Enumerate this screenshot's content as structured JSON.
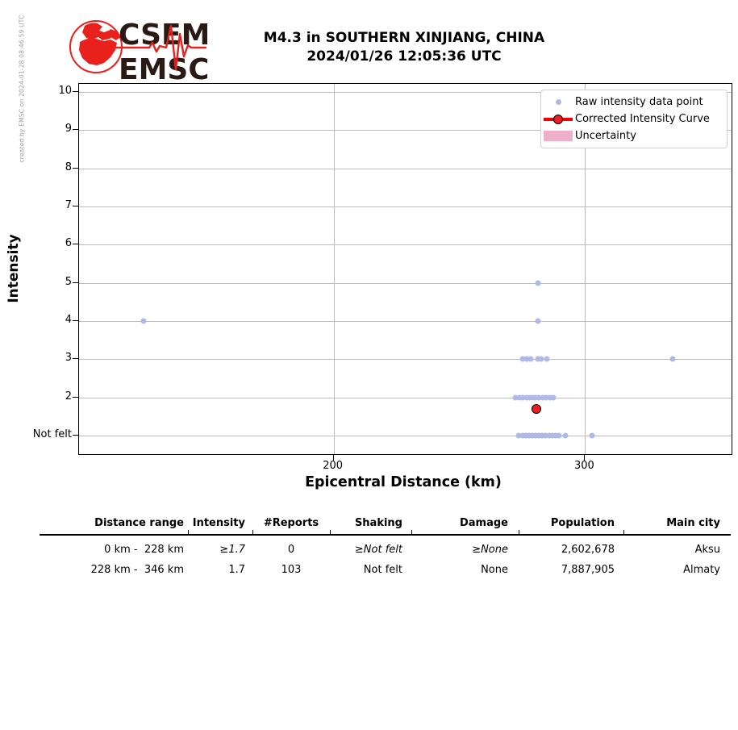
{
  "header": {
    "credit": "created by EMSC on 2024-01-28 08:46:59 UTC",
    "title_line1": "M4.3 in SOUTHERN XINJIANG, CHINA",
    "title_line2": "2024/01/26 12:05:36 UTC",
    "logo_line1": "CSEM",
    "logo_line2": "EMSC"
  },
  "colors": {
    "raw_point_blue": "#aeb9e7",
    "curve_red": "#f40000",
    "marker_red_fill": "#ee1c23",
    "uncertainty_pink": "#efafc8",
    "grid_gray": "#bcbcbc",
    "logo_red": "#e8211c",
    "logo_text_dark": "#2a1a14"
  },
  "chart_data": {
    "type": "scatter",
    "title": "M4.3 in SOUTHERN XINJIANG, CHINA 2024/01/26 12:05:36 UTC",
    "xlabel": "Epicentral Distance (km)",
    "ylabel": "Intensity",
    "xlim": [
      98.7,
      358.9
    ],
    "ylim": [
      0.47,
      10.21
    ],
    "grid": true,
    "legend_position": "upper right",
    "x_ticks": [
      {
        "value": 200,
        "label": "200"
      },
      {
        "value": 300,
        "label": "300"
      }
    ],
    "y_ticks": [
      {
        "value": 1,
        "label": "Not felt"
      },
      {
        "value": 2,
        "label": "2"
      },
      {
        "value": 3,
        "label": "3"
      },
      {
        "value": 4,
        "label": "4"
      },
      {
        "value": 5,
        "label": "5"
      },
      {
        "value": 6,
        "label": "6"
      },
      {
        "value": 7,
        "label": "7"
      },
      {
        "value": 8,
        "label": "8"
      },
      {
        "value": 9,
        "label": "9"
      },
      {
        "value": 10,
        "label": "10"
      }
    ],
    "series": [
      {
        "name": "Raw intensity data point",
        "type": "scatter",
        "points": [
          [
            124.4,
            4
          ],
          [
            281.3,
            5
          ],
          [
            281.3,
            4
          ],
          [
            275.3,
            3
          ],
          [
            276.9,
            3
          ],
          [
            278.5,
            3
          ],
          [
            281.1,
            3
          ],
          [
            282.4,
            3
          ],
          [
            284.9,
            3
          ],
          [
            334.7,
            3
          ],
          [
            272.4,
            2
          ],
          [
            274.0,
            2
          ],
          [
            275.3,
            2
          ],
          [
            276.6,
            2
          ],
          [
            277.9,
            2
          ],
          [
            279.2,
            2
          ],
          [
            280.4,
            2
          ],
          [
            281.7,
            2
          ],
          [
            283.3,
            2
          ],
          [
            284.6,
            2
          ],
          [
            285.9,
            2
          ],
          [
            287.2,
            2
          ],
          [
            273.7,
            1
          ],
          [
            275.0,
            1
          ],
          [
            276.3,
            1
          ],
          [
            277.6,
            1
          ],
          [
            278.9,
            1
          ],
          [
            280.2,
            1
          ],
          [
            281.5,
            1
          ],
          [
            282.8,
            1
          ],
          [
            284.1,
            1
          ],
          [
            285.6,
            1
          ],
          [
            286.9,
            1
          ],
          [
            288.2,
            1
          ],
          [
            289.5,
            1
          ],
          [
            292.3,
            1
          ],
          [
            302.6,
            1
          ]
        ],
        "note": "Intensity value 1 is plotted on the 'Not felt' row"
      },
      {
        "name": "Corrected Intensity Curve",
        "type": "line",
        "points": [
          [
            280.5,
            1.7
          ]
        ]
      }
    ],
    "legend_items": [
      {
        "label": "Raw intensity data point",
        "marker": "dot"
      },
      {
        "label": "Corrected Intensity Curve",
        "marker": "line-dot"
      },
      {
        "label": "Uncertainty",
        "marker": "patch"
      }
    ]
  },
  "table": {
    "headers": [
      "Distance range",
      "Intensity",
      "#Reports",
      "Shaking",
      "Damage",
      "Population",
      "Main city"
    ],
    "rows": [
      {
        "cells": [
          "0 km -  228 km",
          "≥1.7",
          "0",
          "≥Not felt",
          "≥None",
          "2,602,678",
          "Aksu"
        ],
        "italics": [
          false,
          true,
          false,
          true,
          true,
          false,
          false
        ]
      },
      {
        "cells": [
          "228 km -  346 km",
          "1.7",
          "103",
          "Not felt",
          "None",
          "7,887,905",
          "Almaty"
        ],
        "italics": [
          false,
          false,
          false,
          false,
          false,
          false,
          false
        ]
      }
    ]
  }
}
